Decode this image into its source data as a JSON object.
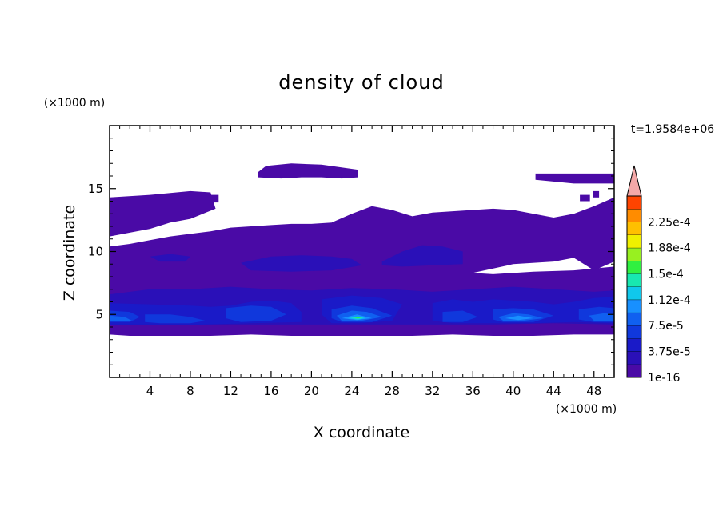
{
  "chart_data": {
    "type": "heatmap",
    "title": "density of cloud",
    "xlabel": "X coordinate",
    "ylabel": "Z coordinate",
    "x_unit": "(×1000 m)",
    "y_unit": "(×1000 m)",
    "time_label": "t=1.9584e+06",
    "xlim": [
      0,
      50
    ],
    "ylim": [
      0,
      20
    ],
    "x_ticks": [
      4,
      8,
      12,
      16,
      20,
      24,
      28,
      32,
      36,
      40,
      44,
      48
    ],
    "y_ticks": [
      5,
      10,
      15
    ],
    "colorbar": {
      "labels": [
        "1e-16",
        "3.75e-5",
        "7.5e-5",
        "1.12e-4",
        "1.5e-4",
        "1.88e-4",
        "2.25e-4"
      ],
      "label_values": [
        1e-16,
        3.75e-05,
        7.5e-05,
        0.000112,
        0.00015,
        0.000188,
        0.000225
      ],
      "levels": [
        0,
        1.875e-05,
        3.75e-05,
        5.625e-05,
        7.5e-05,
        9.375e-05,
        0.0001125,
        0.00013125,
        0.00015,
        0.00016875,
        0.0001875,
        0.00020625,
        0.000225,
        0.00024375,
        0.0002625
      ],
      "colors": [
        "#4a0aa6",
        "#2a10b8",
        "#1a1ac8",
        "#1038dc",
        "#1060f0",
        "#1890ff",
        "#10c8ec",
        "#18e8b0",
        "#30f040",
        "#98f020",
        "#f0f000",
        "#ffc000",
        "#ff8c00",
        "#ff4400",
        "#f01010"
      ],
      "overflow_color": "#f4a8a8"
    },
    "regions": [
      {
        "level": 0,
        "polygon": [
          [
            0,
            14.3
          ],
          [
            4,
            14.5
          ],
          [
            8,
            14.8
          ],
          [
            10,
            14.7
          ],
          [
            10.5,
            13.4
          ],
          [
            8,
            12.6
          ],
          [
            6,
            12.3
          ],
          [
            4,
            11.8
          ],
          [
            2,
            11.5
          ],
          [
            0,
            11.2
          ]
        ]
      },
      {
        "level": 0,
        "polygon": [
          [
            9.6,
            14.5
          ],
          [
            10.8,
            14.5
          ],
          [
            10.8,
            13.9
          ],
          [
            9.6,
            13.9
          ]
        ]
      },
      {
        "level": 0,
        "polygon": [
          [
            14.7,
            16.3
          ],
          [
            15.5,
            16.8
          ],
          [
            18,
            17.0
          ],
          [
            21,
            16.9
          ],
          [
            24.6,
            16.5
          ],
          [
            24.6,
            15.9
          ],
          [
            23,
            15.8
          ],
          [
            21,
            15.9
          ],
          [
            19,
            15.9
          ],
          [
            17,
            15.8
          ],
          [
            14.7,
            15.9
          ]
        ]
      },
      {
        "level": 0,
        "polygon": [
          [
            42.2,
            16.2
          ],
          [
            46,
            16.2
          ],
          [
            50,
            16.2
          ],
          [
            50,
            15.4
          ],
          [
            46,
            15.4
          ],
          [
            42.2,
            15.7
          ]
        ]
      },
      {
        "level": 0,
        "polygon": [
          [
            46.6,
            14.5
          ],
          [
            47.6,
            14.5
          ],
          [
            47.6,
            14.0
          ],
          [
            46.6,
            14.0
          ]
        ]
      },
      {
        "level": 0,
        "polygon": [
          [
            47.9,
            14.8
          ],
          [
            48.5,
            14.8
          ],
          [
            48.5,
            14.3
          ],
          [
            47.9,
            14.3
          ]
        ]
      },
      {
        "level": 0,
        "polygon": [
          [
            0,
            10.4
          ],
          [
            2,
            10.6
          ],
          [
            4,
            10.9
          ],
          [
            6,
            11.2
          ],
          [
            8,
            11.4
          ],
          [
            10,
            11.6
          ],
          [
            12,
            11.9
          ],
          [
            14,
            12.0
          ],
          [
            16,
            12.1
          ],
          [
            18,
            12.2
          ],
          [
            20,
            12.2
          ],
          [
            22,
            12.3
          ],
          [
            24,
            13.0
          ],
          [
            26,
            13.6
          ],
          [
            28,
            13.3
          ],
          [
            30,
            12.8
          ],
          [
            32,
            13.1
          ],
          [
            34,
            13.2
          ],
          [
            36,
            13.3
          ],
          [
            38,
            13.4
          ],
          [
            40,
            13.3
          ],
          [
            42,
            13.0
          ],
          [
            44,
            12.7
          ],
          [
            46,
            13.0
          ],
          [
            48,
            13.6
          ],
          [
            50,
            14.3
          ],
          [
            50,
            9.2
          ],
          [
            48,
            8.5
          ],
          [
            46,
            9.5
          ],
          [
            44,
            9.2
          ],
          [
            40,
            9.0
          ],
          [
            36,
            8.3
          ],
          [
            34,
            7.8
          ],
          [
            30,
            7.8
          ],
          [
            26,
            7.6
          ],
          [
            24,
            7.8
          ],
          [
            20,
            7.9
          ],
          [
            16,
            8.3
          ],
          [
            12,
            8.3
          ],
          [
            8,
            8.2
          ],
          [
            4,
            8.2
          ],
          [
            0,
            8.1
          ]
        ]
      },
      {
        "level": 0,
        "polygon": [
          [
            0,
            8.4
          ],
          [
            2,
            8.5
          ],
          [
            6,
            8.5
          ],
          [
            10,
            8.5
          ],
          [
            14,
            8.6
          ],
          [
            18,
            8.6
          ],
          [
            22,
            8.4
          ],
          [
            26,
            8.2
          ],
          [
            30,
            8.4
          ],
          [
            34,
            8.4
          ],
          [
            38,
            8.2
          ],
          [
            42,
            8.4
          ],
          [
            46,
            8.5
          ],
          [
            50,
            8.8
          ],
          [
            50,
            3.4
          ],
          [
            46,
            3.4
          ],
          [
            42,
            3.3
          ],
          [
            38,
            3.3
          ],
          [
            34,
            3.4
          ],
          [
            30,
            3.3
          ],
          [
            26,
            3.3
          ],
          [
            22,
            3.3
          ],
          [
            18,
            3.3
          ],
          [
            14,
            3.4
          ],
          [
            10,
            3.3
          ],
          [
            6,
            3.3
          ],
          [
            2,
            3.3
          ],
          [
            0,
            3.4
          ]
        ]
      },
      {
        "level": 1,
        "polygon": [
          [
            27,
            9.2
          ],
          [
            29,
            10.0
          ],
          [
            31,
            10.5
          ],
          [
            33,
            10.4
          ],
          [
            35,
            10.0
          ],
          [
            35,
            9.0
          ],
          [
            32,
            8.9
          ],
          [
            29,
            8.8
          ],
          [
            27,
            8.9
          ]
        ]
      },
      {
        "level": 1,
        "polygon": [
          [
            4,
            9.6
          ],
          [
            6,
            9.8
          ],
          [
            8,
            9.6
          ],
          [
            7.5,
            9.2
          ],
          [
            5,
            9.2
          ]
        ]
      },
      {
        "level": 1,
        "polygon": [
          [
            13,
            9.1
          ],
          [
            16,
            9.6
          ],
          [
            19,
            9.7
          ],
          [
            22,
            9.6
          ],
          [
            24,
            9.4
          ],
          [
            25,
            8.9
          ],
          [
            22,
            8.5
          ],
          [
            18,
            8.4
          ],
          [
            14,
            8.5
          ]
        ]
      },
      {
        "level": 1,
        "polygon": [
          [
            0,
            6.6
          ],
          [
            4,
            7.0
          ],
          [
            8,
            7.0
          ],
          [
            12,
            7.2
          ],
          [
            16,
            7.0
          ],
          [
            20,
            6.9
          ],
          [
            24,
            7.1
          ],
          [
            28,
            7.0
          ],
          [
            32,
            6.8
          ],
          [
            36,
            7.0
          ],
          [
            40,
            7.2
          ],
          [
            44,
            7.0
          ],
          [
            48,
            6.8
          ],
          [
            50,
            6.9
          ],
          [
            50,
            4.2
          ],
          [
            44,
            4.3
          ],
          [
            38,
            4.2
          ],
          [
            32,
            4.2
          ],
          [
            26,
            4.2
          ],
          [
            20,
            4.2
          ],
          [
            14,
            4.2
          ],
          [
            8,
            4.2
          ],
          [
            2,
            4.2
          ],
          [
            0,
            4.2
          ]
        ]
      },
      {
        "level": 2,
        "polygon": [
          [
            0,
            5.9
          ],
          [
            4,
            5.8
          ],
          [
            8,
            5.7
          ],
          [
            10,
            5.6
          ],
          [
            12,
            5.7
          ],
          [
            14,
            6.0
          ],
          [
            16,
            6.1
          ],
          [
            18,
            5.9
          ],
          [
            19,
            5.2
          ],
          [
            19,
            4.4
          ],
          [
            14,
            4.3
          ],
          [
            9,
            4.2
          ],
          [
            4,
            4.2
          ],
          [
            0,
            4.2
          ]
        ]
      },
      {
        "level": 2,
        "polygon": [
          [
            21,
            6.2
          ],
          [
            24,
            6.5
          ],
          [
            27,
            6.3
          ],
          [
            29,
            5.8
          ],
          [
            28,
            4.5
          ],
          [
            25,
            4.3
          ],
          [
            22,
            4.3
          ],
          [
            21,
            5.0
          ]
        ]
      },
      {
        "level": 2,
        "polygon": [
          [
            32,
            5.9
          ],
          [
            34,
            6.2
          ],
          [
            36,
            6.0
          ],
          [
            38,
            6.2
          ],
          [
            40,
            6.1
          ],
          [
            42,
            6.0
          ],
          [
            44,
            5.8
          ],
          [
            46,
            6.0
          ],
          [
            48,
            6.3
          ],
          [
            50,
            6.4
          ],
          [
            50,
            4.3
          ],
          [
            46,
            4.4
          ],
          [
            42,
            4.3
          ],
          [
            38,
            4.3
          ],
          [
            34,
            4.3
          ],
          [
            32,
            4.5
          ]
        ]
      },
      {
        "level": 3,
        "polygon": [
          [
            0,
            5.3
          ],
          [
            2,
            5.2
          ],
          [
            3,
            4.8
          ],
          [
            2,
            4.4
          ],
          [
            0,
            4.4
          ]
        ]
      },
      {
        "level": 3,
        "polygon": [
          [
            3.5,
            5.0
          ],
          [
            6,
            5.0
          ],
          [
            8,
            4.8
          ],
          [
            9.5,
            4.5
          ],
          [
            8,
            4.3
          ],
          [
            5,
            4.3
          ],
          [
            3.5,
            4.4
          ]
        ]
      },
      {
        "level": 3,
        "polygon": [
          [
            11.5,
            5.5
          ],
          [
            14,
            5.7
          ],
          [
            16,
            5.6
          ],
          [
            17.5,
            5.0
          ],
          [
            16,
            4.5
          ],
          [
            13,
            4.4
          ],
          [
            11.5,
            4.7
          ]
        ]
      },
      {
        "level": 3,
        "polygon": [
          [
            22,
            5.4
          ],
          [
            24,
            5.7
          ],
          [
            26,
            5.5
          ],
          [
            28,
            4.9
          ],
          [
            26,
            4.4
          ],
          [
            23,
            4.4
          ],
          [
            22,
            4.7
          ]
        ]
      },
      {
        "level": 3,
        "polygon": [
          [
            33,
            5.2
          ],
          [
            35,
            5.3
          ],
          [
            36.5,
            4.8
          ],
          [
            35,
            4.4
          ],
          [
            33,
            4.4
          ]
        ]
      },
      {
        "level": 3,
        "polygon": [
          [
            38,
            5.4
          ],
          [
            40,
            5.5
          ],
          [
            42,
            5.4
          ],
          [
            44,
            4.9
          ],
          [
            42,
            4.4
          ],
          [
            39,
            4.4
          ],
          [
            38,
            4.6
          ]
        ]
      },
      {
        "level": 3,
        "polygon": [
          [
            46.5,
            5.4
          ],
          [
            48.5,
            5.6
          ],
          [
            50,
            5.5
          ],
          [
            50,
            4.4
          ],
          [
            48,
            4.4
          ],
          [
            46.5,
            4.6
          ]
        ]
      },
      {
        "level": 4,
        "polygon": [
          [
            22.5,
            4.9
          ],
          [
            24,
            5.3
          ],
          [
            25.5,
            5.2
          ],
          [
            27,
            4.8
          ],
          [
            25,
            4.5
          ],
          [
            23,
            4.5
          ]
        ]
      },
      {
        "level": 4,
        "polygon": [
          [
            38.5,
            4.8
          ],
          [
            40,
            5.1
          ],
          [
            41.5,
            5.0
          ],
          [
            43,
            4.7
          ],
          [
            41,
            4.5
          ],
          [
            39,
            4.5
          ]
        ]
      },
      {
        "level": 4,
        "polygon": [
          [
            0,
            4.9
          ],
          [
            1.5,
            4.8
          ],
          [
            2.2,
            4.5
          ],
          [
            0,
            4.5
          ]
        ]
      },
      {
        "level": 4,
        "polygon": [
          [
            47.5,
            4.9
          ],
          [
            49,
            5.1
          ],
          [
            50,
            5.0
          ],
          [
            50,
            4.5
          ],
          [
            48,
            4.5
          ]
        ]
      },
      {
        "level": 5,
        "polygon": [
          [
            23,
            4.7
          ],
          [
            24.5,
            5.0
          ],
          [
            26,
            4.7
          ],
          [
            24.5,
            4.55
          ]
        ]
      },
      {
        "level": 5,
        "polygon": [
          [
            39.2,
            4.7
          ],
          [
            40.5,
            4.9
          ],
          [
            42,
            4.7
          ],
          [
            40.5,
            4.55
          ]
        ]
      },
      {
        "level": 6,
        "polygon": [
          [
            23.6,
            4.7
          ],
          [
            24.6,
            4.85
          ],
          [
            25.4,
            4.7
          ],
          [
            24.6,
            4.6
          ]
        ]
      },
      {
        "level": 7,
        "polygon": [
          [
            24.0,
            4.72
          ],
          [
            24.6,
            4.8
          ],
          [
            25.1,
            4.72
          ],
          [
            24.6,
            4.66
          ]
        ]
      },
      {
        "level": 8,
        "polygon": [
          [
            24.3,
            4.74
          ],
          [
            24.6,
            4.78
          ],
          [
            24.9,
            4.74
          ],
          [
            24.6,
            4.7
          ]
        ]
      }
    ]
  }
}
